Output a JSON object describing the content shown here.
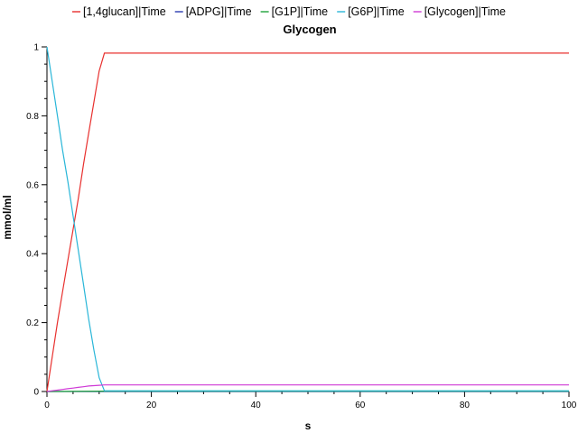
{
  "chart_data": {
    "type": "line",
    "title": "Glycogen",
    "xlabel": "s",
    "ylabel": "mmol/ml",
    "xlim": [
      0,
      100
    ],
    "ylim": [
      0,
      1
    ],
    "x_ticks": [
      "0",
      "20",
      "40",
      "60",
      "80",
      "100"
    ],
    "y_ticks": [
      "0",
      "0.2",
      "0.4",
      "0.6",
      "0.8",
      "1"
    ],
    "grid": false,
    "legend_position": "top",
    "series": [
      {
        "name": "[1,4glucan]|Time",
        "color": "#e8302e",
        "x": [
          0,
          1,
          2,
          3,
          4,
          5,
          6,
          7,
          8,
          9,
          10,
          11,
          100
        ],
        "y": [
          0,
          0.1,
          0.2,
          0.29,
          0.38,
          0.47,
          0.56,
          0.66,
          0.75,
          0.84,
          0.93,
          0.982,
          0.982
        ]
      },
      {
        "name": "[ADPG]|Time",
        "color": "#2a3bb0",
        "x": [
          0,
          11,
          100
        ],
        "y": [
          0,
          0,
          0
        ]
      },
      {
        "name": "[G1P]|Time",
        "color": "#1fa23a",
        "x": [
          0,
          11,
          100
        ],
        "y": [
          0,
          0.001,
          0.001
        ]
      },
      {
        "name": "[G6P]|Time",
        "color": "#29b6d8",
        "x": [
          0,
          1,
          2,
          3,
          4,
          5,
          6,
          7,
          8,
          9,
          10,
          11,
          100
        ],
        "y": [
          1,
          0.9,
          0.8,
          0.7,
          0.61,
          0.51,
          0.41,
          0.31,
          0.21,
          0.12,
          0.04,
          0.002,
          0.002
        ]
      },
      {
        "name": "[Glycogen]|Time",
        "color": "#cf3ad6",
        "x": [
          0,
          1,
          2,
          3,
          4,
          5,
          6,
          7,
          8,
          9,
          10,
          11,
          100
        ],
        "y": [
          0,
          0.002,
          0.004,
          0.006,
          0.008,
          0.01,
          0.012,
          0.014,
          0.016,
          0.017,
          0.018,
          0.019,
          0.019
        ]
      }
    ]
  }
}
